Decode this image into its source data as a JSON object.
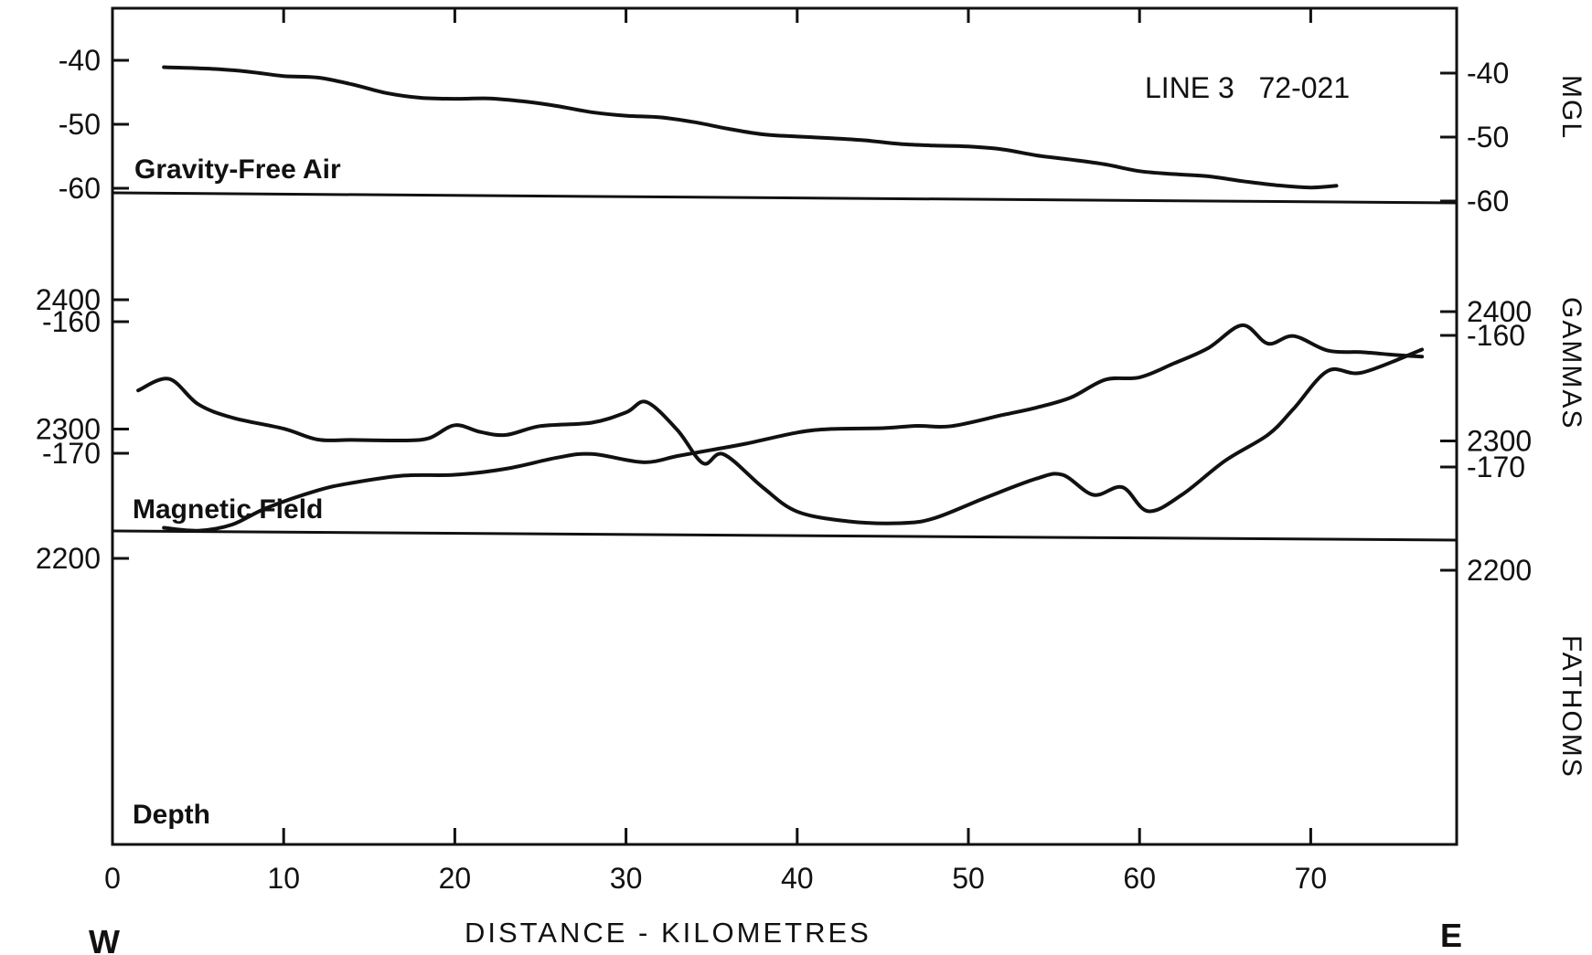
{
  "chart_data": {
    "type": "line",
    "title": "LINE 3   72-021",
    "xlabel": "DISTANCE - KILOMETRES",
    "x_ticks": [
      0,
      10,
      20,
      30,
      40,
      50,
      60,
      70
    ],
    "xlim": [
      0,
      78
    ],
    "west_label": "W",
    "east_label": "E",
    "grid": false,
    "panels": [
      {
        "id": "gravity",
        "label": "Gravity-Free Air",
        "unit": "MGL",
        "ylim": [
          -60,
          -35
        ],
        "left_ticks": [
          "-40",
          "-50",
          "-60"
        ],
        "right_ticks": [
          "-40",
          "-50",
          "-60"
        ],
        "series": {
          "x": [
            3,
            6,
            8,
            10,
            12,
            14,
            16,
            18,
            20,
            22,
            24,
            26,
            28,
            30,
            32,
            34,
            36,
            38,
            40,
            42,
            44,
            46,
            48,
            50,
            52,
            54,
            56,
            58,
            60,
            62,
            64,
            66,
            68,
            70,
            71.5
          ],
          "y": [
            -41,
            -41.2,
            -41.6,
            -42.2,
            -42.4,
            -43.4,
            -44.7,
            -45.4,
            -45.5,
            -45.4,
            -45.8,
            -46.5,
            -47.4,
            -47.9,
            -48.1,
            -48.8,
            -49.8,
            -50.6,
            -50.9,
            -51.1,
            -51.4,
            -51.9,
            -52.1,
            -52.2,
            -52.6,
            -53.5,
            -54.1,
            -54.8,
            -55.8,
            -56.2,
            -56.5,
            -57.2,
            -57.8,
            -58.1,
            -57.8
          ]
        }
      },
      {
        "id": "magnetic",
        "label": "Magnetic Field",
        "unit": "GAMMAS",
        "ylim": [
          -176,
          -156
        ],
        "left_ticks": [
          "-160",
          "-170"
        ],
        "right_ticks": [
          "-160",
          "-170"
        ],
        "series": {
          "x": [
            1.5,
            3.3,
            5,
            7,
            10,
            12,
            14,
            17,
            18.5,
            20,
            21.5,
            23,
            25,
            28,
            30,
            31.2,
            33,
            34.5,
            35.7,
            38,
            40,
            43,
            46,
            48,
            51,
            54,
            55.5,
            57.3,
            59,
            60.5,
            62.5,
            65,
            67.5,
            69,
            71,
            73,
            76.5
          ],
          "y": [
            -165.2,
            -164.3,
            -166.2,
            -167.2,
            -168,
            -168.8,
            -168.8,
            -168.8,
            -168.6,
            -167.6,
            -168.1,
            -168.3,
            -167.6,
            -167.3,
            -166.5,
            -165.7,
            -167.8,
            -170.3,
            -169.6,
            -172.1,
            -173.9,
            -174.6,
            -174.7,
            -174.3,
            -172.7,
            -171.2,
            -170.9,
            -172.4,
            -171.8,
            -173.6,
            -172.3,
            -169.7,
            -167.7,
            -165.7,
            -162.8,
            -162.9,
            -161.1
          ]
        }
      },
      {
        "id": "depth",
        "label": "Depth",
        "unit": "FATHOMS",
        "ylim": [
          2190,
          2420
        ],
        "left_ticks": [
          "2200",
          "2300",
          "2400"
        ],
        "right_ticks": [
          "2200",
          "2300",
          "2400"
        ],
        "series": {
          "x": [
            3,
            5,
            7,
            9,
            12,
            14,
            17,
            20,
            23,
            26,
            28,
            31,
            33,
            35,
            37,
            40,
            42,
            45,
            47,
            49,
            52,
            54,
            56,
            58,
            60,
            62,
            64,
            66,
            67.5,
            69,
            71,
            73,
            75,
            76.5
          ],
          "y": [
            2224,
            2222,
            2227,
            2240,
            2254,
            2260,
            2266,
            2267,
            2272,
            2281,
            2284,
            2278,
            2283,
            2288,
            2293,
            2302,
            2305,
            2306,
            2308,
            2308,
            2317,
            2323,
            2331,
            2345,
            2347,
            2358,
            2370,
            2388,
            2374,
            2380,
            2369,
            2368,
            2366,
            2365
          ]
        }
      }
    ]
  }
}
